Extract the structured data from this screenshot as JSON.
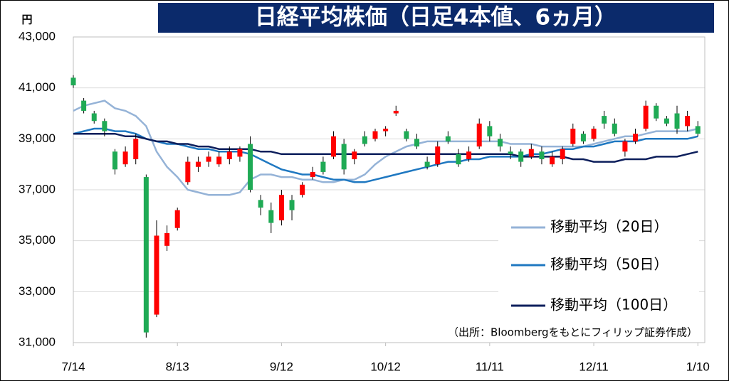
{
  "chart_data": {
    "type": "candlestick",
    "title": "日経平均株価（日足4本値、6ヵ月）",
    "y_unit": "円",
    "note": "（出所：Bloombergをもとにフィリップ証券作成）",
    "x": [
      0,
      3,
      6,
      9,
      12,
      15,
      18,
      21,
      24,
      27,
      30,
      33,
      36,
      39,
      42,
      45,
      48,
      51,
      54,
      57,
      60,
      63,
      66,
      69,
      72,
      75,
      78,
      81,
      84,
      87,
      90,
      93,
      96,
      99,
      102,
      105,
      108,
      111,
      114,
      117,
      120,
      123,
      126,
      129,
      132,
      135,
      138,
      141,
      144,
      147,
      150,
      153,
      156,
      159,
      162,
      165,
      168,
      171,
      174,
      177,
      180
    ],
    "xlim": [
      0,
      182
    ],
    "xticks": [
      {
        "value": 0,
        "label": "7/14"
      },
      {
        "value": 30,
        "label": "8/13"
      },
      {
        "value": 60,
        "label": "9/12"
      },
      {
        "value": 90,
        "label": "10/12"
      },
      {
        "value": 120,
        "label": "11/11"
      },
      {
        "value": 150,
        "label": "12/11"
      },
      {
        "value": 180,
        "label": "1/10"
      }
    ],
    "ylim": [
      31000,
      43000
    ],
    "yticks": [
      {
        "value": 31000,
        "label": "31,000"
      },
      {
        "value": 33000,
        "label": "33,000"
      },
      {
        "value": 35000,
        "label": "35,000"
      },
      {
        "value": 37000,
        "label": "37,000"
      },
      {
        "value": 39000,
        "label": "39,000"
      },
      {
        "value": 41000,
        "label": "41,000"
      },
      {
        "value": 43000,
        "label": "43,000"
      }
    ],
    "grid": true,
    "up_color": "#ff0000",
    "down_color": "#1faa55",
    "candles": {
      "open": [
        41400,
        40500,
        40000,
        39700,
        38500,
        38000,
        38200,
        37500,
        32100,
        34800,
        35500,
        37300,
        37900,
        38100,
        38000,
        38200,
        38300,
        38800,
        36600,
        36200,
        35800,
        36600,
        36800,
        37500,
        38100,
        38300,
        38800,
        38200,
        39100,
        39000,
        39300,
        40000,
        39300,
        39000,
        38100,
        38000,
        39100,
        38400,
        38200,
        38700,
        39500,
        39000,
        38500,
        38500,
        38300,
        38500,
        38000,
        38200,
        38800,
        39200,
        39000,
        39900,
        39600,
        38500,
        38900,
        39400,
        40300,
        39800,
        40000,
        39500,
        39500
      ],
      "high": [
        41500,
        40600,
        40100,
        39800,
        38600,
        38700,
        39200,
        37600,
        35800,
        35600,
        36300,
        38300,
        38300,
        38500,
        38500,
        38700,
        38700,
        39100,
        36800,
        36500,
        37000,
        36800,
        37300,
        37900,
        38300,
        39300,
        39000,
        38600,
        39300,
        39400,
        39500,
        40300,
        39400,
        39200,
        38300,
        38900,
        39300,
        38600,
        38700,
        39800,
        39700,
        39200,
        38700,
        38600,
        38800,
        38700,
        38500,
        38700,
        39600,
        39300,
        39500,
        40100,
        39800,
        39000,
        39400,
        40500,
        40400,
        39900,
        40300,
        40100,
        39700
      ],
      "low": [
        41000,
        40000,
        39600,
        39100,
        37600,
        37900,
        38000,
        31200,
        32000,
        34600,
        35400,
        37200,
        37700,
        37900,
        37900,
        38000,
        38100,
        36900,
        36000,
        35300,
        35600,
        35800,
        36700,
        37400,
        37600,
        38200,
        37600,
        38000,
        38700,
        38900,
        39100,
        39900,
        38900,
        38600,
        37800,
        37900,
        38800,
        37900,
        38100,
        38600,
        38900,
        38500,
        38200,
        37900,
        38200,
        38000,
        37900,
        38000,
        38700,
        38800,
        38900,
        39400,
        39100,
        38300,
        38800,
        39300,
        39700,
        39500,
        39200,
        39300,
        39100
      ],
      "close": [
        41100,
        40100,
        39700,
        39300,
        37800,
        38500,
        39000,
        31400,
        35200,
        35300,
        36200,
        38100,
        38100,
        38300,
        38300,
        38500,
        38600,
        37000,
        36300,
        35700,
        36800,
        36200,
        37200,
        37700,
        37700,
        39100,
        37800,
        38500,
        38800,
        39300,
        39400,
        40100,
        39000,
        38700,
        37900,
        38700,
        38900,
        38000,
        38500,
        39600,
        39100,
        38700,
        38400,
        38100,
        38600,
        38200,
        38300,
        38600,
        39400,
        38900,
        39400,
        39600,
        39200,
        38900,
        39200,
        40300,
        39800,
        39600,
        39400,
        39900,
        39200
      ]
    },
    "series": [
      {
        "name": "移動平均（20日）",
        "color": "#95b3d7",
        "values": [
          40100,
          40300,
          40400,
          40500,
          40200,
          40100,
          39900,
          39500,
          38500,
          37900,
          37500,
          37000,
          36900,
          36800,
          36800,
          36800,
          36900,
          37400,
          37600,
          37600,
          37500,
          37500,
          37400,
          37400,
          37300,
          37300,
          37400,
          37400,
          37600,
          38000,
          38300,
          38500,
          38700,
          38800,
          38900,
          38900,
          38900,
          38900,
          38900,
          38900,
          38900,
          38900,
          38800,
          38800,
          38800,
          38700,
          38700,
          38700,
          38700,
          38700,
          38800,
          38900,
          39000,
          39100,
          39100,
          39200,
          39300,
          39300,
          39300,
          39300,
          39400
        ]
      },
      {
        "name": "移動平均（50日）",
        "color": "#1f78c1",
        "values": [
          39200,
          39300,
          39400,
          39400,
          39300,
          39300,
          39200,
          39000,
          38900,
          38800,
          38800,
          38700,
          38600,
          38600,
          38500,
          38500,
          38500,
          38400,
          38200,
          38000,
          37800,
          37700,
          37600,
          37600,
          37500,
          37400,
          37400,
          37300,
          37300,
          37400,
          37500,
          37600,
          37700,
          37800,
          37900,
          38000,
          38100,
          38100,
          38200,
          38200,
          38300,
          38300,
          38300,
          38300,
          38400,
          38400,
          38500,
          38600,
          38600,
          38700,
          38700,
          38800,
          38900,
          38900,
          38900,
          39000,
          39000,
          39000,
          39000,
          39000,
          39100
        ]
      },
      {
        "name": "移動平均（100日）",
        "color": "#0d1f5c",
        "values": [
          39200,
          39200,
          39200,
          39200,
          39200,
          39100,
          39100,
          39000,
          38900,
          38900,
          38800,
          38800,
          38700,
          38700,
          38600,
          38600,
          38600,
          38600,
          38500,
          38500,
          38400,
          38400,
          38400,
          38400,
          38400,
          38400,
          38400,
          38400,
          38400,
          38400,
          38400,
          38400,
          38400,
          38400,
          38400,
          38400,
          38400,
          38400,
          38400,
          38400,
          38400,
          38400,
          38400,
          38300,
          38300,
          38300,
          38300,
          38300,
          38200,
          38200,
          38100,
          38100,
          38100,
          38200,
          38200,
          38200,
          38300,
          38300,
          38300,
          38400,
          38500
        ]
      }
    ]
  }
}
